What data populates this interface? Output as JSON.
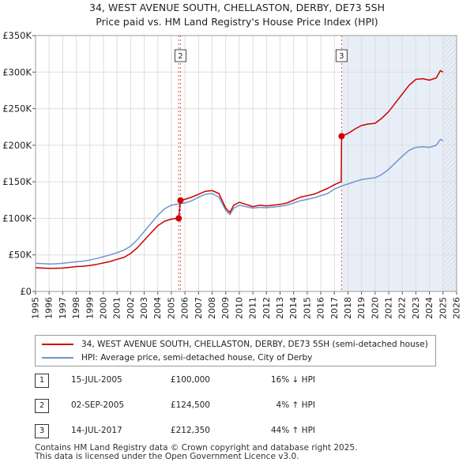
{
  "title_line1": "34, WEST AVENUE SOUTH, CHELLASTON, DERBY, DE73 5SH",
  "title_line2": "Price paid vs. HM Land Registry's House Price Index (HPI)",
  "colors": {
    "property": "#cc0000",
    "hpi": "#6f96cc",
    "shade": "#e8eef8",
    "hatch": "#c8c8c8",
    "grid": "#dddddd",
    "marker_line": "#e05555"
  },
  "legend": {
    "property_label": "34, WEST AVENUE SOUTH, CHELLASTON, DERBY, DE73 5SH (semi-detached house)",
    "hpi_label": "HPI: Average price, semi-detached house, City of Derby"
  },
  "sales": [
    {
      "id": "1",
      "date": "15-JUL-2005",
      "price": "£100,000",
      "hpi_change": "16% ↓ HPI"
    },
    {
      "id": "2",
      "date": "02-SEP-2005",
      "price": "£124,500",
      "hpi_change": "4% ↑ HPI"
    },
    {
      "id": "3",
      "date": "14-JUL-2017",
      "price": "£212,350",
      "hpi_change": "44% ↑ HPI"
    }
  ],
  "footer": {
    "line1": "Contains HM Land Registry data © Crown copyright and database right 2025.",
    "line2": "This data is licensed under the Open Government Licence v3.0."
  },
  "chart_data": {
    "type": "line",
    "title": "Price paid vs. HM Land Registry's House Price Index (HPI)",
    "xlabel": "",
    "ylabel": "",
    "xlim": [
      1995,
      2026
    ],
    "ylim": [
      0,
      350000
    ],
    "x_ticks": [
      1995,
      1996,
      1997,
      1998,
      1999,
      2000,
      2001,
      2002,
      2003,
      2004,
      2005,
      2006,
      2007,
      2008,
      2009,
      2010,
      2011,
      2012,
      2013,
      2014,
      2015,
      2016,
      2017,
      2018,
      2019,
      2020,
      2021,
      2022,
      2023,
      2024,
      2025,
      2026
    ],
    "y_ticks": [
      {
        "value": 0,
        "label": "£0"
      },
      {
        "value": 50000,
        "label": "£50K"
      },
      {
        "value": 100000,
        "label": "£100K"
      },
      {
        "value": 150000,
        "label": "£150K"
      },
      {
        "value": 200000,
        "label": "£200K"
      },
      {
        "value": 250000,
        "label": "£250K"
      },
      {
        "value": 300000,
        "label": "£300K"
      },
      {
        "value": 350000,
        "label": "£350K"
      }
    ],
    "grid": true,
    "shaded_region": {
      "from": 2017.54,
      "to": 2026
    },
    "hatched_region": {
      "from": 2025.0,
      "to": 2026
    },
    "series": [
      {
        "name": "34, WEST AVENUE SOUTH, CHELLASTON, DERBY, DE73 5SH (semi-detached house)",
        "points": [
          [
            1995,
            32500
          ],
          [
            1995.5,
            32000
          ],
          [
            1996,
            31500
          ],
          [
            1996.5,
            31800
          ],
          [
            1997,
            32000
          ],
          [
            1997.5,
            33000
          ],
          [
            1998,
            34000
          ],
          [
            1998.5,
            34500
          ],
          [
            1999,
            35500
          ],
          [
            1999.5,
            37000
          ],
          [
            2000,
            39000
          ],
          [
            2000.5,
            41000
          ],
          [
            2001,
            44000
          ],
          [
            2001.5,
            46500
          ],
          [
            2002,
            52000
          ],
          [
            2002.5,
            60000
          ],
          [
            2003,
            70000
          ],
          [
            2003.5,
            80000
          ],
          [
            2004,
            90000
          ],
          [
            2004.5,
            96000
          ],
          [
            2005,
            99000
          ],
          [
            2005.54,
            100000
          ],
          [
            2005.67,
            124500
          ],
          [
            2006,
            126000
          ],
          [
            2006.5,
            129000
          ],
          [
            2007,
            133000
          ],
          [
            2007.5,
            137000
          ],
          [
            2008,
            138000
          ],
          [
            2008.5,
            134000
          ],
          [
            2009,
            114000
          ],
          [
            2009.3,
            108000
          ],
          [
            2009.6,
            118000
          ],
          [
            2010,
            122000
          ],
          [
            2010.5,
            119000
          ],
          [
            2011,
            116000
          ],
          [
            2011.5,
            118000
          ],
          [
            2012,
            117000
          ],
          [
            2012.5,
            118000
          ],
          [
            2013,
            119000
          ],
          [
            2013.5,
            121000
          ],
          [
            2014,
            125000
          ],
          [
            2014.5,
            129000
          ],
          [
            2015,
            131000
          ],
          [
            2015.5,
            133000
          ],
          [
            2016,
            137000
          ],
          [
            2016.5,
            141000
          ],
          [
            2017,
            146000
          ],
          [
            2017.5,
            150000
          ],
          [
            2017.53,
            212350
          ],
          [
            2018,
            216000
          ],
          [
            2018.5,
            222000
          ],
          [
            2019,
            227000
          ],
          [
            2019.5,
            229000
          ],
          [
            2020,
            230000
          ],
          [
            2020.5,
            237000
          ],
          [
            2021,
            246000
          ],
          [
            2021.5,
            258000
          ],
          [
            2022,
            270000
          ],
          [
            2022.5,
            282000
          ],
          [
            2023,
            290000
          ],
          [
            2023.5,
            291000
          ],
          [
            2024,
            289000
          ],
          [
            2024.5,
            292000
          ],
          [
            2024.8,
            302000
          ],
          [
            2025,
            300000
          ]
        ]
      },
      {
        "name": "HPI: Average price, semi-detached house, City of Derby",
        "points": [
          [
            1995,
            38500
          ],
          [
            1995.5,
            38000
          ],
          [
            1996,
            37500
          ],
          [
            1996.5,
            37800
          ],
          [
            1997,
            38500
          ],
          [
            1997.5,
            39500
          ],
          [
            1998,
            40500
          ],
          [
            1998.5,
            41500
          ],
          [
            1999,
            43000
          ],
          [
            1999.5,
            45000
          ],
          [
            2000,
            47500
          ],
          [
            2000.5,
            50000
          ],
          [
            2001,
            53000
          ],
          [
            2001.5,
            56500
          ],
          [
            2002,
            62000
          ],
          [
            2002.5,
            71000
          ],
          [
            2003,
            82000
          ],
          [
            2003.5,
            93000
          ],
          [
            2004,
            104000
          ],
          [
            2004.5,
            113000
          ],
          [
            2005,
            118000
          ],
          [
            2005.5,
            119500
          ],
          [
            2006,
            121000
          ],
          [
            2006.5,
            124000
          ],
          [
            2007,
            129000
          ],
          [
            2007.5,
            133000
          ],
          [
            2008,
            134000
          ],
          [
            2008.5,
            129000
          ],
          [
            2009,
            111000
          ],
          [
            2009.3,
            105000
          ],
          [
            2009.6,
            114000
          ],
          [
            2010,
            118000
          ],
          [
            2010.5,
            116000
          ],
          [
            2011,
            114000
          ],
          [
            2011.5,
            115000
          ],
          [
            2012,
            114500
          ],
          [
            2012.5,
            115500
          ],
          [
            2013,
            116500
          ],
          [
            2013.5,
            118000
          ],
          [
            2014,
            121000
          ],
          [
            2014.5,
            124000
          ],
          [
            2015,
            126000
          ],
          [
            2015.5,
            128000
          ],
          [
            2016,
            131000
          ],
          [
            2016.5,
            134000
          ],
          [
            2017,
            140000
          ],
          [
            2017.5,
            144000
          ],
          [
            2018,
            147000
          ],
          [
            2018.5,
            150000
          ],
          [
            2019,
            153000
          ],
          [
            2019.5,
            154500
          ],
          [
            2020,
            155500
          ],
          [
            2020.5,
            160000
          ],
          [
            2021,
            167000
          ],
          [
            2021.5,
            176000
          ],
          [
            2022,
            185000
          ],
          [
            2022.5,
            193000
          ],
          [
            2023,
            197000
          ],
          [
            2023.5,
            198000
          ],
          [
            2024,
            197000
          ],
          [
            2024.5,
            200000
          ],
          [
            2024.8,
            208000
          ],
          [
            2025,
            206000
          ]
        ]
      }
    ],
    "sale_markers": [
      {
        "label": "1",
        "x": 2005.54,
        "y": 100000,
        "show_box": false
      },
      {
        "label": "2",
        "x": 2005.67,
        "y": 124500,
        "show_box": true
      },
      {
        "label": "3",
        "x": 2017.53,
        "y": 212350,
        "show_box": true
      }
    ]
  }
}
